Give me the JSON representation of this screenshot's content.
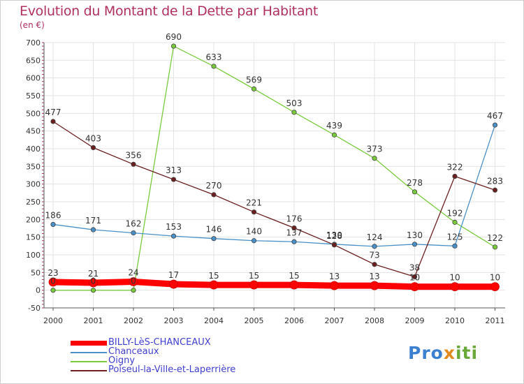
{
  "header": {
    "title": "Evolution du Montant de la Dette par Habitant",
    "unit": "(en €)"
  },
  "logo": {
    "text": "Proxiti",
    "colors": [
      "#3b7fd0",
      "#e58a1f",
      "#6aa83a"
    ]
  },
  "chart_data": {
    "type": "line",
    "title": "Evolution du Montant de la Dette par Habitant",
    "subtitle": "(en €)",
    "xlabel": "",
    "ylabel": "",
    "x": [
      "2000",
      "2001",
      "2002",
      "2003",
      "2004",
      "2005",
      "2006",
      "2007",
      "2008",
      "2009",
      "2010",
      "2011"
    ],
    "ylim": [
      -50,
      700
    ],
    "yticks": [
      -50,
      0,
      50,
      100,
      150,
      200,
      250,
      300,
      350,
      400,
      450,
      500,
      550,
      600,
      650,
      700
    ],
    "grid": true,
    "legend_position": "bottom-left",
    "series": [
      {
        "name": "BILLY-LèS-CHANCEAUX",
        "color": "#ff0000",
        "values": [
          23,
          21,
          24,
          17,
          15,
          15,
          15,
          13,
          13,
          10,
          10,
          10
        ],
        "labels": [
          "23",
          "21",
          "24",
          "17",
          "15",
          "15",
          "15",
          "13",
          "13",
          "10",
          "10",
          "10"
        ]
      },
      {
        "name": "Chanceaux",
        "color": "#4a90c8",
        "values": [
          186,
          171,
          162,
          153,
          146,
          140,
          137,
          130,
          124,
          130,
          125,
          467
        ],
        "labels": [
          "186",
          "171",
          "162",
          "153",
          "146",
          "140",
          "137",
          "130",
          "124",
          "130",
          "125",
          "467"
        ]
      },
      {
        "name": "Oigny",
        "color": "#7acb3c",
        "values": [
          0,
          0,
          0,
          690,
          633,
          569,
          503,
          439,
          373,
          278,
          192,
          122
        ],
        "labels": [
          "0",
          "0",
          "0",
          "690",
          "633",
          "569",
          "503",
          "439",
          "373",
          "278",
          "192",
          "122"
        ]
      },
      {
        "name": "Poiseul-la-Ville-et-Laperrière",
        "color": "#6b1f1f",
        "values": [
          477,
          403,
          356,
          313,
          270,
          221,
          176,
          128,
          73,
          38,
          322,
          283
        ],
        "labels": [
          "477",
          "403",
          "356",
          "313",
          "270",
          "221",
          "176",
          "128",
          "73",
          "38",
          "322",
          "283"
        ]
      }
    ]
  }
}
